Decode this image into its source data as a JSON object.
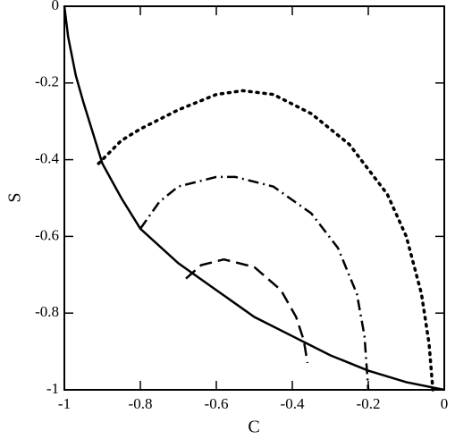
{
  "chart_data": {
    "type": "line",
    "x_label": "C",
    "y_label": "S",
    "xlim": [
      -1,
      0
    ],
    "ylim": [
      -1,
      0
    ],
    "xticks": [
      -1,
      -0.8,
      -0.6,
      -0.4,
      -0.2,
      0
    ],
    "yticks": [
      -1,
      -0.8,
      -0.6,
      -0.4,
      -0.2,
      0
    ],
    "grid": false,
    "series": [
      {
        "color": "#000000",
        "dash": "solid",
        "x": [
          -1,
          -0.99,
          -0.97,
          -0.95,
          -0.9,
          -0.85,
          -0.8,
          -0.7,
          -0.6,
          -0.5,
          -0.4,
          -0.3,
          -0.2,
          -0.1,
          0
        ],
        "values": [
          0,
          -0.08,
          -0.18,
          -0.25,
          -0.41,
          -0.5,
          -0.58,
          -0.67,
          -0.74,
          -0.81,
          -0.86,
          -0.91,
          -0.95,
          -0.98,
          -1
        ]
      },
      {
        "color": "#000000",
        "dash": "dotted",
        "x": [
          -0.91,
          -0.85,
          -0.8,
          -0.7,
          -0.6,
          -0.53,
          -0.45,
          -0.35,
          -0.25,
          -0.15,
          -0.1,
          -0.06,
          -0.04,
          -0.03
        ],
        "values": [
          -0.41,
          -0.35,
          -0.32,
          -0.27,
          -0.23,
          -0.22,
          -0.23,
          -0.28,
          -0.36,
          -0.49,
          -0.6,
          -0.75,
          -0.88,
          -1
        ]
      },
      {
        "color": "#000000",
        "dash": "dashdot",
        "x": [
          -0.8,
          -0.75,
          -0.7,
          -0.6,
          -0.55,
          -0.45,
          -0.35,
          -0.28,
          -0.23,
          -0.21,
          -0.2
        ],
        "values": [
          -0.58,
          -0.51,
          -0.47,
          -0.445,
          -0.445,
          -0.47,
          -0.54,
          -0.63,
          -0.75,
          -0.86,
          -1
        ]
      },
      {
        "color": "#000000",
        "dash": "dashed",
        "x": [
          -0.68,
          -0.64,
          -0.58,
          -0.5,
          -0.43,
          -0.39,
          -0.37,
          -0.36
        ],
        "values": [
          -0.71,
          -0.675,
          -0.66,
          -0.68,
          -0.74,
          -0.81,
          -0.87,
          -0.93
        ]
      }
    ]
  }
}
